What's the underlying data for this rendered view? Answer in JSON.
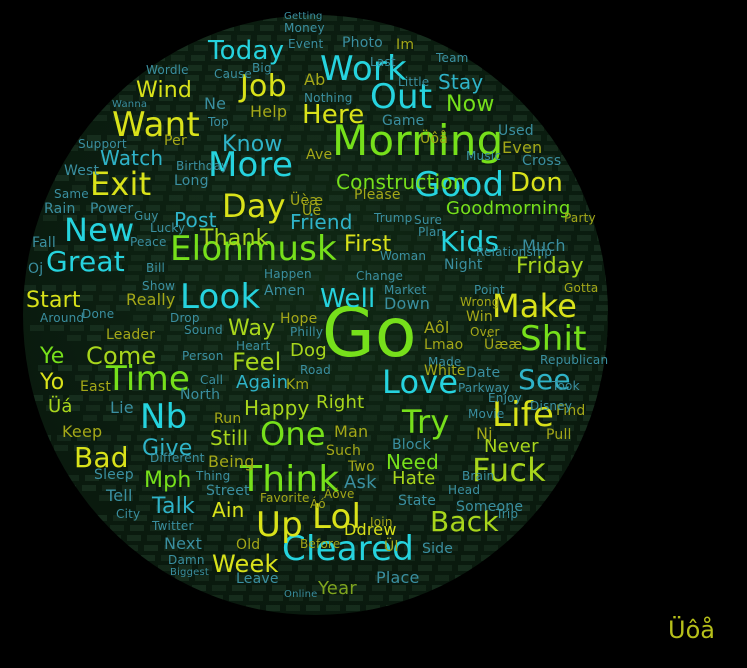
{
  "image": {
    "background": "#000000",
    "globe_color": "#0b1d10",
    "palette": {
      "cyan": "#26d3de",
      "green": "#76e01b",
      "yellow": "#d9e21a",
      "lime": "#a8d61c",
      "teal": "#2fb3c8",
      "dim_green": "#7fa51e",
      "dim_cyan": "#3a8fa0",
      "dim_yellow": "#a4a818"
    },
    "watermark_text": "Üôå",
    "words": [
      {
        "text": "Go",
        "color": "#76e01b"
      },
      {
        "text": "Morning",
        "color": "#76e01b"
      },
      {
        "text": "Elonmusk",
        "color": "#76e01b"
      },
      {
        "text": "Cleared",
        "color": "#26d3de"
      },
      {
        "text": "Work",
        "color": "#26d3de"
      },
      {
        "text": "Out",
        "color": "#26d3de"
      },
      {
        "text": "Good",
        "color": "#26d3de"
      },
      {
        "text": "Look",
        "color": "#26d3de"
      },
      {
        "text": "More",
        "color": "#26d3de"
      },
      {
        "text": "Think",
        "color": "#76e01b"
      },
      {
        "text": "Lol",
        "color": "#d9e21a"
      },
      {
        "text": "Up",
        "color": "#d9e21a"
      },
      {
        "text": "Fuck",
        "color": "#a8d61c"
      },
      {
        "text": "Shit",
        "color": "#76e01b"
      },
      {
        "text": "Make",
        "color": "#d9e21a"
      },
      {
        "text": "Time",
        "color": "#76e01b"
      },
      {
        "text": "Nb",
        "color": "#26d3de"
      },
      {
        "text": "Love",
        "color": "#26d3de"
      },
      {
        "text": "Try",
        "color": "#76e01b"
      },
      {
        "text": "Life",
        "color": "#d9e21a"
      },
      {
        "text": "One",
        "color": "#76e01b"
      },
      {
        "text": "Want",
        "color": "#d9e21a"
      },
      {
        "text": "New",
        "color": "#26d3de"
      },
      {
        "text": "Exit",
        "color": "#d9e21a"
      },
      {
        "text": "Day",
        "color": "#d9e21a"
      },
      {
        "text": "Job",
        "color": "#d9e21a"
      },
      {
        "text": "Today",
        "color": "#26d3de"
      },
      {
        "text": "Great",
        "color": "#26d3de"
      },
      {
        "text": "Kids",
        "color": "#26d3de"
      },
      {
        "text": "Well",
        "color": "#26d3de"
      },
      {
        "text": "Back",
        "color": "#a8d61c"
      },
      {
        "text": "Bad",
        "color": "#d9e21a"
      },
      {
        "text": "See",
        "color": "#2fb3c8"
      },
      {
        "text": "Here",
        "color": "#d9e21a"
      },
      {
        "text": "Don",
        "color": "#d9e21a"
      },
      {
        "text": "Feel",
        "color": "#a8d61c"
      },
      {
        "text": "Come",
        "color": "#a8d61c"
      },
      {
        "text": "Friday",
        "color": "#a8d61c"
      },
      {
        "text": "Construction",
        "color": "#76e01b"
      },
      {
        "text": "Now",
        "color": "#76e01b"
      },
      {
        "text": "Stay",
        "color": "#2fb3c8"
      },
      {
        "text": "Wind",
        "color": "#d9e21a"
      },
      {
        "text": "Watch",
        "color": "#2fb3c8"
      },
      {
        "text": "Know",
        "color": "#2fb3c8"
      },
      {
        "text": "Thank",
        "color": "#a8d61c"
      },
      {
        "text": "Friend",
        "color": "#2fb3c8"
      },
      {
        "text": "First",
        "color": "#d9e21a"
      },
      {
        "text": "Post",
        "color": "#2fb3c8"
      },
      {
        "text": "Start",
        "color": "#d9e21a"
      },
      {
        "text": "Way",
        "color": "#a8d61c"
      },
      {
        "text": "Yo",
        "color": "#d9e21a"
      },
      {
        "text": "Ye",
        "color": "#76e01b"
      },
      {
        "text": "Give",
        "color": "#2fb3c8"
      },
      {
        "text": "Mph",
        "color": "#76e01b"
      },
      {
        "text": "Talk",
        "color": "#2fb3c8"
      },
      {
        "text": "Ain",
        "color": "#d9e21a"
      },
      {
        "text": "Week",
        "color": "#d9e21a"
      },
      {
        "text": "Year",
        "color": "#7fa51e"
      },
      {
        "text": "Place",
        "color": "#3a8fa0"
      },
      {
        "text": "Ddrew",
        "color": "#d9e21a"
      },
      {
        "text": "Need",
        "color": "#76e01b"
      },
      {
        "text": "Hate",
        "color": "#a8d61c"
      },
      {
        "text": "Right",
        "color": "#a8d61c"
      },
      {
        "text": "Happy",
        "color": "#a8d61c"
      },
      {
        "text": "Still",
        "color": "#a8d61c"
      },
      {
        "text": "Keep",
        "color": "#a4a818"
      },
      {
        "text": "Again",
        "color": "#2fb3c8"
      },
      {
        "text": "Goodmorning",
        "color": "#76e01b"
      },
      {
        "text": "Power",
        "color": "#3a8fa0"
      },
      {
        "text": "Rain",
        "color": "#3a8fa0"
      },
      {
        "text": "Never",
        "color": "#a8d61c"
      },
      {
        "text": "Much",
        "color": "#3a8fa0"
      },
      {
        "text": "Next",
        "color": "#3a8fa0"
      },
      {
        "text": "Tell",
        "color": "#3a8fa0"
      },
      {
        "text": "Sleep",
        "color": "#3a8fa0"
      },
      {
        "text": "Dog",
        "color": "#a8d61c"
      },
      {
        "text": "Lie",
        "color": "#3a8fa0"
      },
      {
        "text": "Üá",
        "color": "#a8d61c"
      },
      {
        "text": "Üèæ",
        "color": "#a4a818"
      },
      {
        "text": "Down",
        "color": "#3a8fa0"
      },
      {
        "text": "Aôl",
        "color": "#a4a818"
      },
      {
        "text": "Lmao",
        "color": "#a4a818"
      },
      {
        "text": "Being",
        "color": "#a4a818"
      },
      {
        "text": "Old",
        "color": "#a4a818"
      },
      {
        "text": "Ask",
        "color": "#3a8fa0"
      },
      {
        "text": "Man",
        "color": "#a4a818"
      },
      {
        "text": "Help",
        "color": "#a4a818"
      },
      {
        "text": "Please",
        "color": "#a4a818"
      },
      {
        "text": "Even",
        "color": "#a4a818"
      },
      {
        "text": "Used",
        "color": "#3a8fa0"
      },
      {
        "text": "Game",
        "color": "#3a8fa0"
      },
      {
        "text": "Night",
        "color": "#3a8fa0"
      },
      {
        "text": "Photo",
        "color": "#3a8fa0"
      },
      {
        "text": "Money",
        "color": "#3a8fa0"
      },
      {
        "text": "Wordle",
        "color": "#3a8fa0"
      },
      {
        "text": "Date",
        "color": "#3a8fa0"
      },
      {
        "text": "Enjoy",
        "color": "#3a8fa0"
      },
      {
        "text": "Pull",
        "color": "#a4a818"
      },
      {
        "text": "Find",
        "color": "#a4a818"
      },
      {
        "text": "Really",
        "color": "#a4a818"
      },
      {
        "text": "Long",
        "color": "#3a8fa0"
      },
      {
        "text": "Sure",
        "color": "#3a8fa0"
      },
      {
        "text": "Street",
        "color": "#3a8fa0"
      },
      {
        "text": "Fall",
        "color": "#3a8fa0"
      },
      {
        "text": "Im",
        "color": "#a4a818"
      },
      {
        "text": "Ab",
        "color": "#a4a818"
      },
      {
        "text": "Ne",
        "color": "#3a8fa0"
      },
      {
        "text": "Cause",
        "color": "#3a8fa0"
      },
      {
        "text": "Big",
        "color": "#3a8fa0"
      },
      {
        "text": "Last",
        "color": "#3a8fa0"
      },
      {
        "text": "Team",
        "color": "#3a8fa0"
      },
      {
        "text": "Little",
        "color": "#3a8fa0"
      },
      {
        "text": "Nothing",
        "color": "#3a8fa0"
      },
      {
        "text": "Top",
        "color": "#3a8fa0"
      },
      {
        "text": "Per",
        "color": "#a4a818"
      },
      {
        "text": "Ave",
        "color": "#a4a818"
      },
      {
        "text": "Music",
        "color": "#3a8fa0"
      },
      {
        "text": "Cross",
        "color": "#3a8fa0"
      },
      {
        "text": "Guy",
        "color": "#3a8fa0"
      },
      {
        "text": "Peace",
        "color": "#3a8fa0"
      },
      {
        "text": "Trump",
        "color": "#3a8fa0"
      },
      {
        "text": "Plan",
        "color": "#3a8fa0"
      },
      {
        "text": "Party",
        "color": "#a4a818"
      },
      {
        "text": "Gotta",
        "color": "#a4a818"
      },
      {
        "text": "Around",
        "color": "#3a8fa0"
      },
      {
        "text": "Done",
        "color": "#3a8fa0"
      },
      {
        "text": "Bill",
        "color": "#3a8fa0"
      },
      {
        "text": "Show",
        "color": "#3a8fa0"
      },
      {
        "text": "Amen",
        "color": "#3a8fa0"
      },
      {
        "text": "Happen",
        "color": "#3a8fa0"
      },
      {
        "text": "Woman",
        "color": "#3a8fa0"
      },
      {
        "text": "Market",
        "color": "#3a8fa0"
      },
      {
        "text": "Change",
        "color": "#3a8fa0"
      },
      {
        "text": "Wrong",
        "color": "#a4a818"
      },
      {
        "text": "Point",
        "color": "#3a8fa0"
      },
      {
        "text": "Win",
        "color": "#a4a818"
      },
      {
        "text": "Over",
        "color": "#a4a818"
      },
      {
        "text": "Üææ",
        "color": "#a4a818"
      },
      {
        "text": "Philly",
        "color": "#3a8fa0"
      },
      {
        "text": "Hope",
        "color": "#a4a818"
      },
      {
        "text": "Sound",
        "color": "#3a8fa0"
      },
      {
        "text": "Drop",
        "color": "#3a8fa0"
      },
      {
        "text": "Leader",
        "color": "#a4a818"
      },
      {
        "text": "Heart",
        "color": "#3a8fa0"
      },
      {
        "text": "Road",
        "color": "#3a8fa0"
      },
      {
        "text": "Person",
        "color": "#3a8fa0"
      },
      {
        "text": "Call",
        "color": "#3a8fa0"
      },
      {
        "text": "East",
        "color": "#a4a818"
      },
      {
        "text": "North",
        "color": "#3a8fa0"
      },
      {
        "text": "Run",
        "color": "#a4a818"
      },
      {
        "text": "Km",
        "color": "#a4a818"
      },
      {
        "text": "Made",
        "color": "#3a8fa0"
      },
      {
        "text": "White",
        "color": "#a4a818"
      },
      {
        "text": "Parkway",
        "color": "#3a8fa0"
      },
      {
        "text": "Movie",
        "color": "#3a8fa0"
      },
      {
        "text": "Republican",
        "color": "#3a8fa0"
      },
      {
        "text": "Took",
        "color": "#3a8fa0"
      },
      {
        "text": "Disney",
        "color": "#3a8fa0"
      },
      {
        "text": "Such",
        "color": "#a4a818"
      },
      {
        "text": "Two",
        "color": "#a4a818"
      },
      {
        "text": "Block",
        "color": "#3a8fa0"
      },
      {
        "text": "State",
        "color": "#3a8fa0"
      },
      {
        "text": "Head",
        "color": "#3a8fa0"
      },
      {
        "text": "Someone",
        "color": "#3a8fa0"
      },
      {
        "text": "Trip",
        "color": "#3a8fa0"
      },
      {
        "text": "Side",
        "color": "#3a8fa0"
      },
      {
        "text": "Before",
        "color": "#a4a818"
      },
      {
        "text": "Join",
        "color": "#a4a818"
      },
      {
        "text": "Online",
        "color": "#3a8fa0"
      },
      {
        "text": "Leave",
        "color": "#3a8fa0"
      },
      {
        "text": "Favorite",
        "color": "#a4a818"
      },
      {
        "text": "City",
        "color": "#3a8fa0"
      },
      {
        "text": "Twitter",
        "color": "#3a8fa0"
      },
      {
        "text": "Damn",
        "color": "#3a8fa0"
      },
      {
        "text": "Biggest",
        "color": "#3a8fa0"
      },
      {
        "text": "West",
        "color": "#3a8fa0"
      },
      {
        "text": "Same",
        "color": "#3a8fa0"
      },
      {
        "text": "Support",
        "color": "#3a8fa0"
      },
      {
        "text": "Lucky",
        "color": "#3a8fa0"
      },
      {
        "text": "Birthday",
        "color": "#3a8fa0"
      },
      {
        "text": "Event",
        "color": "#3a8fa0"
      },
      {
        "text": "Getting",
        "color": "#3a8fa0"
      },
      {
        "text": "Wanna",
        "color": "#3a8fa0"
      },
      {
        "text": "Relationship",
        "color": "#3a8fa0"
      },
      {
        "text": "Different",
        "color": "#3a8fa0"
      },
      {
        "text": "Thing",
        "color": "#3a8fa0"
      },
      {
        "text": "Brain",
        "color": "#3a8fa0"
      },
      {
        "text": "Üôå",
        "color": "#a4a818"
      },
      {
        "text": "Üè",
        "color": "#a4a818"
      },
      {
        "text": "Áó",
        "color": "#a4a818"
      },
      {
        "text": "Áóve",
        "color": "#a4a818"
      },
      {
        "text": "Ül",
        "color": "#a4a818"
      },
      {
        "text": "Nj",
        "color": "#a4a818"
      },
      {
        "text": "Oj",
        "color": "#3a8fa0"
      }
    ]
  }
}
